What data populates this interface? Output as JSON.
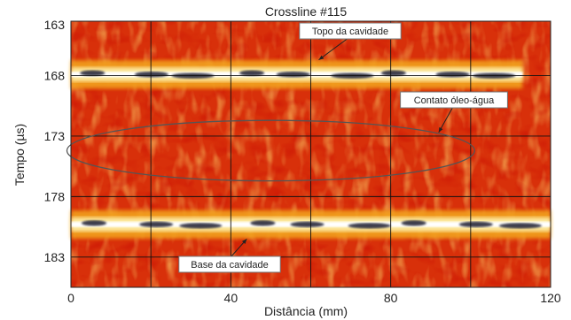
{
  "chart_data": {
    "type": "heatmap",
    "title": "Crossline #115",
    "xlabel": "Distância (mm)",
    "ylabel": "Tempo (µs)",
    "xlim": [
      0,
      120
    ],
    "ylim": [
      163.5,
      185.5
    ],
    "y_inverted": true,
    "x_ticks": [
      0,
      40,
      80,
      120
    ],
    "y_ticks": [
      163,
      168,
      173,
      178,
      183
    ],
    "grid": true,
    "colormap": [
      "#7a0000",
      "#c81e00",
      "#ef5a0a",
      "#f7a21a",
      "#fde27a",
      "#ffffff",
      "#2b2b2b"
    ],
    "reflectors": [
      {
        "label": "Topo da cavidade",
        "time_us": 167.9,
        "x_range": [
          0,
          113
        ]
      },
      {
        "label": "Base da cavidade",
        "time_us": 180.3,
        "x_range": [
          0,
          120
        ]
      }
    ],
    "ellipse_region": {
      "label": "Contato óleo-água",
      "x_center": 50,
      "y_center": 174.2,
      "x_halfwidth": 51,
      "y_halfwidth": 2.5
    },
    "annotations": [
      {
        "text": "Topo da cavidade",
        "target_x": 62,
        "target_y": 166.7
      },
      {
        "text": "Contato óleo-água",
        "target_x": 92,
        "target_y": 172.7
      },
      {
        "text": "Base da cavidade",
        "target_x": 44,
        "target_y": 181.5
      }
    ]
  }
}
